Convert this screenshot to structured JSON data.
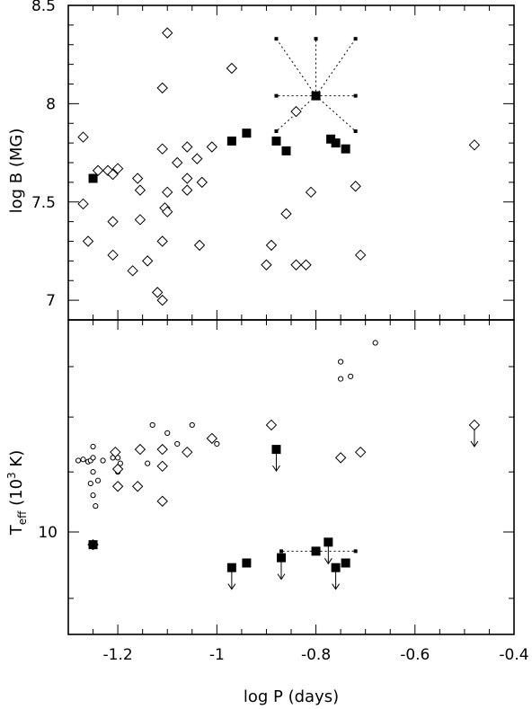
{
  "figure": {
    "xlabel": "log P (days)",
    "x_ticks": [
      "-1.2",
      "-1",
      "-0.8",
      "-0.6",
      "-0.4"
    ],
    "x_tick_values": [
      -1.2,
      -1.0,
      -0.8,
      -0.6,
      -0.4
    ],
    "xlim": [
      -1.3,
      -0.4
    ]
  },
  "chart_data": [
    {
      "type": "scatter",
      "panel": "top",
      "ylabel": "log B (MG)",
      "ylim": [
        6.9,
        8.5
      ],
      "y_ticks": [
        "8.5",
        "8",
        "7.5",
        "7"
      ],
      "y_tick_values": [
        8.5,
        8.0,
        7.5,
        7.0
      ],
      "series": [
        {
          "marker": "open-diamond",
          "points": [
            [
              -1.27,
              7.83
            ],
            [
              -1.27,
              7.49
            ],
            [
              -1.26,
              7.3
            ],
            [
              -1.24,
              7.66
            ],
            [
              -1.22,
              7.66
            ],
            [
              -1.21,
              7.64
            ],
            [
              -1.2,
              7.67
            ],
            [
              -1.21,
              7.4
            ],
            [
              -1.21,
              7.23
            ],
            [
              -1.17,
              7.15
            ],
            [
              -1.16,
              7.62
            ],
            [
              -1.155,
              7.56
            ],
            [
              -1.155,
              7.41
            ],
            [
              -1.14,
              7.2
            ],
            [
              -1.12,
              7.04
            ],
            [
              -1.11,
              7.0
            ],
            [
              -1.11,
              8.08
            ],
            [
              -1.1,
              8.36
            ],
            [
              -1.11,
              7.77
            ],
            [
              -1.1,
              7.55
            ],
            [
              -1.105,
              7.47
            ],
            [
              -1.1,
              7.45
            ],
            [
              -1.11,
              7.3
            ],
            [
              -1.08,
              7.7
            ],
            [
              -1.06,
              7.78
            ],
            [
              -1.06,
              7.62
            ],
            [
              -1.06,
              7.56
            ],
            [
              -1.04,
              7.72
            ],
            [
              -1.03,
              7.6
            ],
            [
              -1.035,
              7.28
            ],
            [
              -1.01,
              7.78
            ],
            [
              -0.97,
              8.18
            ],
            [
              -0.9,
              7.18
            ],
            [
              -0.89,
              7.28
            ],
            [
              -0.86,
              7.44
            ],
            [
              -0.84,
              7.96
            ],
            [
              -0.84,
              7.18
            ],
            [
              -0.82,
              7.18
            ],
            [
              -0.81,
              7.55
            ],
            [
              -0.72,
              7.58
            ],
            [
              -0.71,
              7.23
            ],
            [
              -0.48,
              7.79
            ]
          ]
        },
        {
          "marker": "filled-square",
          "points": [
            [
              -1.25,
              7.62
            ],
            [
              -0.97,
              7.81
            ],
            [
              -0.94,
              7.85
            ],
            [
              -0.88,
              7.81
            ],
            [
              -0.86,
              7.76
            ],
            [
              -0.8,
              8.04
            ],
            [
              -0.77,
              7.82
            ],
            [
              -0.76,
              7.8
            ],
            [
              -0.74,
              7.77
            ]
          ]
        }
      ],
      "annotation": {
        "center": [
          -0.8,
          8.04
        ],
        "ends": [
          [
            -0.88,
            8.33
          ],
          [
            -0.8,
            8.33
          ],
          [
            -0.72,
            8.33
          ],
          [
            -0.88,
            8.04
          ],
          [
            -0.72,
            8.04
          ],
          [
            -0.88,
            7.86
          ],
          [
            -0.72,
            7.86
          ]
        ]
      }
    },
    {
      "type": "scatter",
      "panel": "bottom",
      "ylabel": "T",
      "ylabel_sub": "eff",
      "ylabel_unit_pre": " (10",
      "ylabel_sup": "3",
      "ylabel_unit_post": " K)",
      "y_scale": "log",
      "ylim": [
        8.5,
        14.0
      ],
      "y_ticks": [
        "10"
      ],
      "y_tick_values": [
        10.0
      ],
      "y_minor_tick_values": [
        9.0,
        11.0,
        12.0,
        13.0
      ],
      "series": [
        {
          "marker": "small-open-circle",
          "points": [
            [
              -1.28,
              11.2
            ],
            [
              -1.27,
              11.22
            ],
            [
              -1.26,
              11.18
            ],
            [
              -1.255,
              11.2
            ],
            [
              -1.25,
              11.25
            ],
            [
              -1.25,
              11.45
            ],
            [
              -1.25,
              11.0
            ],
            [
              -1.255,
              10.8
            ],
            [
              -1.25,
              10.6
            ],
            [
              -1.245,
              10.42
            ],
            [
              -1.24,
              10.85
            ],
            [
              -1.23,
              11.2
            ],
            [
              -1.21,
              11.25
            ],
            [
              -1.2,
              11.25
            ],
            [
              -1.195,
              11.15
            ],
            [
              -1.2,
              11.0
            ],
            [
              -1.14,
              11.15
            ],
            [
              -1.13,
              11.85
            ],
            [
              -1.1,
              11.7
            ],
            [
              -1.08,
              11.5
            ],
            [
              -1.05,
              11.85
            ],
            [
              -1.0,
              11.5
            ],
            [
              -0.75,
              13.1
            ],
            [
              -0.75,
              12.75
            ],
            [
              -0.73,
              12.8
            ],
            [
              -0.68,
              13.5
            ]
          ]
        },
        {
          "marker": "open-diamond",
          "points": [
            [
              -1.25,
              9.8
            ],
            [
              -1.205,
              11.35
            ],
            [
              -1.2,
              11.05
            ],
            [
              -1.2,
              10.75
            ],
            [
              -1.16,
              10.75
            ],
            [
              -1.155,
              11.4
            ],
            [
              -1.11,
              10.5
            ],
            [
              -1.11,
              11.4
            ],
            [
              -1.11,
              11.1
            ],
            [
              -1.06,
              11.35
            ],
            [
              -1.01,
              11.6
            ],
            [
              -0.89,
              11.85
            ],
            [
              -0.75,
              11.25
            ],
            [
              -0.71,
              11.35
            ],
            [
              -0.48,
              11.85
            ]
          ]
        },
        {
          "marker": "filled-square",
          "points": [
            [
              -1.25,
              9.8
            ],
            [
              -0.97,
              9.45
            ],
            [
              -0.94,
              9.52
            ],
            [
              -0.88,
              11.4
            ],
            [
              -0.87,
              9.6
            ],
            [
              -0.8,
              9.7
            ],
            [
              -0.775,
              9.84
            ],
            [
              -0.76,
              9.45
            ],
            [
              -0.74,
              9.52
            ]
          ]
        }
      ],
      "upper_limits": [
        [
          -0.97,
          9.45
        ],
        [
          -0.88,
          11.4
        ],
        [
          -0.87,
          9.6
        ],
        [
          -0.775,
          9.84
        ],
        [
          -0.76,
          9.45
        ],
        [
          -0.48,
          11.85
        ]
      ],
      "annotation": {
        "center": [
          -0.8,
          9.7
        ],
        "ends": [
          [
            -0.87,
            9.7
          ],
          [
            -0.72,
            9.7
          ]
        ]
      }
    }
  ]
}
